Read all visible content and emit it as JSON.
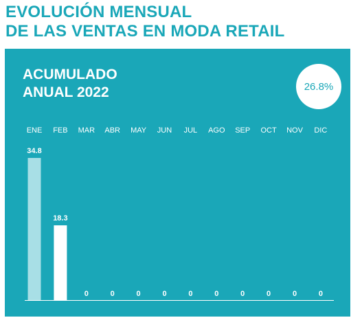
{
  "header": {
    "title_line1": "EVOLUCIÓN MENSUAL",
    "title_line2": "DE LAS VENTAS EN MODA RETAIL"
  },
  "panel": {
    "title_line1": "ACUMULADO",
    "title_line2": "ANUAL 2022",
    "badge": "26.8%"
  },
  "colors": {
    "brand": "#1aa7b8",
    "bar_highlight": "#a8dfe6",
    "bar_default": "#ffffff",
    "label": "#ffffff"
  },
  "chart_data": {
    "type": "bar",
    "categories": [
      "ENE",
      "FEB",
      "MAR",
      "ABR",
      "MAY",
      "JUN",
      "JUL",
      "AGO",
      "SEP",
      "OCT",
      "NOV",
      "DIC"
    ],
    "values": [
      34.8,
      18.3,
      0,
      0,
      0,
      0,
      0,
      0,
      0,
      0,
      0,
      0
    ],
    "value_labels": [
      "34.8",
      "18.3",
      "0",
      "0",
      "0",
      "0",
      "0",
      "0",
      "0",
      "0",
      "0",
      "0"
    ],
    "highlight_index": 0,
    "ylim": [
      0,
      34.8
    ],
    "grid": false,
    "legend": "none"
  }
}
